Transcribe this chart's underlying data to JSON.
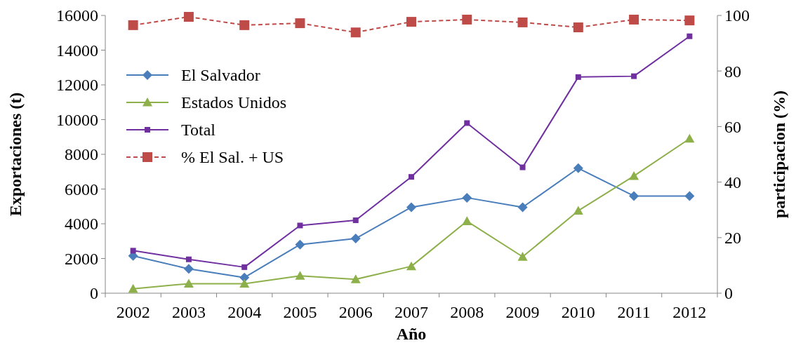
{
  "chart_data": {
    "type": "line",
    "xlabel": "Año",
    "ylabel": "Exportaciones (t)",
    "y2label": "participacion (%)",
    "categories": [
      "2002",
      "2003",
      "2004",
      "2005",
      "2006",
      "2007",
      "2008",
      "2009",
      "2010",
      "2011",
      "2012"
    ],
    "ylim": [
      0,
      16000
    ],
    "yticks": [
      0,
      2000,
      4000,
      6000,
      8000,
      10000,
      12000,
      14000,
      16000
    ],
    "y2lim": [
      0,
      100
    ],
    "y2ticks": [
      0,
      20,
      40,
      60,
      80,
      100
    ],
    "legend": "top left",
    "grid": false,
    "series": [
      {
        "name": "El Salvador",
        "color": "#4a7ebb",
        "marker": "diamond",
        "line_style": "solid",
        "values": [
          2150,
          1400,
          900,
          2800,
          3150,
          4950,
          5500,
          4950,
          7200,
          5600,
          5600
        ]
      },
      {
        "name": "Estados Unidos",
        "color": "#8eb04a",
        "marker": "triangle",
        "line_style": "solid",
        "values": [
          250,
          550,
          550,
          1000,
          800,
          1550,
          4150,
          2100,
          4750,
          6750,
          8900
        ]
      },
      {
        "name": "Total",
        "color": "#7030a0",
        "marker": "square",
        "line_style": "solid",
        "values": [
          2450,
          1950,
          1500,
          3900,
          4200,
          6700,
          9800,
          7250,
          12450,
          12500,
          14800
        ]
      },
      {
        "name": "% El Sal. + US",
        "color": "#be4b48",
        "marker": "square",
        "line_style": "dashed",
        "axis": "y2",
        "values": [
          96.5,
          99.5,
          96.5,
          97.2,
          93.9,
          97.7,
          98.5,
          97.5,
          95.7,
          98.5,
          98.2
        ]
      }
    ]
  }
}
